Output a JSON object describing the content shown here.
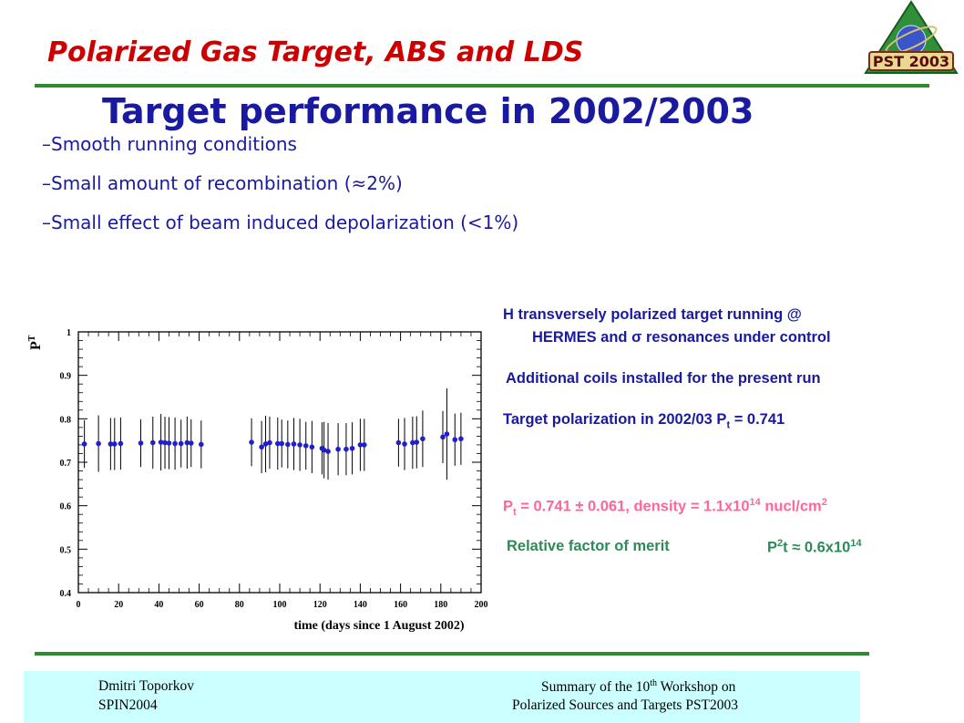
{
  "header": {
    "title": "Polarized Gas Target, ABS and LDS",
    "logo_text": "PST 2003"
  },
  "slide": {
    "title": "Target performance in 2002/2003",
    "bullets": [
      "–Smooth running conditions",
      "–Small amount of recombination (≈2%)",
      "–Small effect of beam induced depolarization (<1%)"
    ]
  },
  "info": {
    "line1": "H transversely polarized target running @",
    "line2": "HERMES  and  σ resonances under control",
    "line3": "Additional coils installed for the present run",
    "line4_pre": "Target polarization in 2002/03 P",
    "line4_sub": "t",
    "line4_post": " = 0.741",
    "line5_p": "P",
    "line5_sub": "t",
    "line5_mid": " = 0.741 ± 0.061, density = 1.1x10",
    "line5_sup": "14",
    "line5_post": " nucl/cm",
    "line5_sup2": "2",
    "line6_label": "Relative factor of merit",
    "line6_p": "P",
    "line6_sup": "2",
    "line6_mid": "t ≈ 0.6x10",
    "line6_sup2": "14",
    "colors": {
      "blue": "#1a1aa0",
      "pink": "#ff6699",
      "green": "#2e8b57"
    }
  },
  "footer": {
    "left_line1": "Dmitri Toporkov",
    "left_line2": "SPIN2004",
    "right_line1_pre": "Summary of the 10",
    "right_line1_sup": "th",
    "right_line1_post": "  Workshop on",
    "right_line2": "Polarized Sources and Targets PST2003"
  },
  "chart_data": {
    "type": "scatter",
    "xlabel": "time (days since 1 August 2002)",
    "ylabel": "P_T",
    "xlim": [
      0,
      200
    ],
    "ylim": [
      0.4,
      1.0
    ],
    "xticks": [
      0,
      20,
      40,
      60,
      80,
      100,
      120,
      140,
      160,
      180,
      200
    ],
    "yticks": [
      0.4,
      0.5,
      0.6,
      0.7,
      0.8,
      0.9,
      1.0
    ],
    "ytick_labels": [
      "0.4",
      "0.5",
      "0.6",
      "0.7",
      "0.8",
      "0.9",
      "1"
    ],
    "marker_color": "#1f1fd0",
    "points": [
      {
        "x": 3,
        "y": 0.742,
        "err": 0.055
      },
      {
        "x": 10,
        "y": 0.743,
        "err": 0.065
      },
      {
        "x": 16,
        "y": 0.742,
        "err": 0.06
      },
      {
        "x": 18,
        "y": 0.742,
        "err": 0.06
      },
      {
        "x": 21,
        "y": 0.743,
        "err": 0.06
      },
      {
        "x": 31,
        "y": 0.744,
        "err": 0.055
      },
      {
        "x": 37,
        "y": 0.745,
        "err": 0.06
      },
      {
        "x": 41,
        "y": 0.746,
        "err": 0.065
      },
      {
        "x": 43,
        "y": 0.745,
        "err": 0.06
      },
      {
        "x": 45,
        "y": 0.744,
        "err": 0.06
      },
      {
        "x": 48,
        "y": 0.743,
        "err": 0.06
      },
      {
        "x": 51,
        "y": 0.743,
        "err": 0.055
      },
      {
        "x": 54,
        "y": 0.745,
        "err": 0.06
      },
      {
        "x": 56,
        "y": 0.744,
        "err": 0.055
      },
      {
        "x": 61,
        "y": 0.741,
        "err": 0.055
      },
      {
        "x": 86,
        "y": 0.746,
        "err": 0.055
      },
      {
        "x": 91,
        "y": 0.735,
        "err": 0.06
      },
      {
        "x": 93,
        "y": 0.742,
        "err": 0.065
      },
      {
        "x": 95,
        "y": 0.745,
        "err": 0.06
      },
      {
        "x": 99,
        "y": 0.743,
        "err": 0.06
      },
      {
        "x": 101,
        "y": 0.743,
        "err": 0.055
      },
      {
        "x": 104,
        "y": 0.741,
        "err": 0.055
      },
      {
        "x": 107,
        "y": 0.742,
        "err": 0.06
      },
      {
        "x": 110,
        "y": 0.74,
        "err": 0.06
      },
      {
        "x": 113,
        "y": 0.738,
        "err": 0.055
      },
      {
        "x": 116,
        "y": 0.735,
        "err": 0.06
      },
      {
        "x": 121,
        "y": 0.732,
        "err": 0.06
      },
      {
        "x": 122,
        "y": 0.728,
        "err": 0.065
      },
      {
        "x": 124,
        "y": 0.725,
        "err": 0.065
      },
      {
        "x": 129,
        "y": 0.73,
        "err": 0.06
      },
      {
        "x": 133,
        "y": 0.73,
        "err": 0.06
      },
      {
        "x": 136,
        "y": 0.732,
        "err": 0.06
      },
      {
        "x": 140,
        "y": 0.74,
        "err": 0.06
      },
      {
        "x": 142,
        "y": 0.74,
        "err": 0.06
      },
      {
        "x": 159,
        "y": 0.745,
        "err": 0.055
      },
      {
        "x": 162,
        "y": 0.742,
        "err": 0.06
      },
      {
        "x": 166,
        "y": 0.745,
        "err": 0.06
      },
      {
        "x": 168,
        "y": 0.746,
        "err": 0.06
      },
      {
        "x": 171,
        "y": 0.754,
        "err": 0.065
      },
      {
        "x": 181,
        "y": 0.758,
        "err": 0.06
      },
      {
        "x": 183,
        "y": 0.765,
        "err": 0.105
      },
      {
        "x": 187,
        "y": 0.752,
        "err": 0.06
      },
      {
        "x": 190,
        "y": 0.754,
        "err": 0.06
      }
    ]
  }
}
